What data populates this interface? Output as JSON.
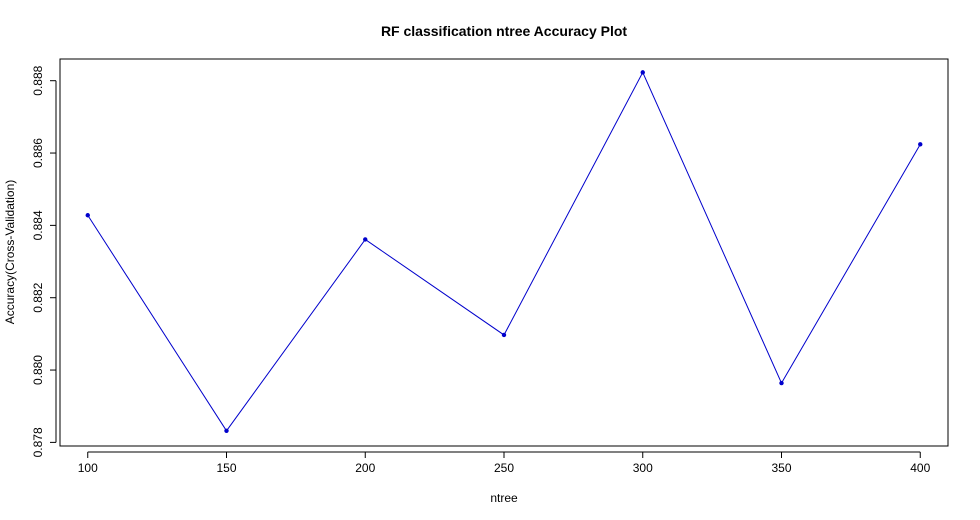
{
  "chart_data": {
    "type": "line",
    "title": "RF classification ntree Accuracy Plot",
    "xlabel": "ntree",
    "ylabel": "Accuracy(Cross-Validation)",
    "x": [
      100,
      150,
      200,
      250,
      300,
      350,
      400
    ],
    "series": [
      {
        "values": [
          0.88428,
          0.87832,
          0.88361,
          0.88097,
          0.88823,
          0.87964,
          0.88624
        ]
      }
    ],
    "xlim": [
      90,
      410
    ],
    "ylim": [
      0.8779,
      0.8886
    ],
    "xticks": [
      "100",
      "150",
      "200",
      "250",
      "300",
      "350",
      "400"
    ],
    "xtick_values": [
      100,
      150,
      200,
      250,
      300,
      350,
      400
    ],
    "yticks": [
      "0.878",
      "0.880",
      "0.882",
      "0.884",
      "0.886",
      "0.888"
    ],
    "ytick_values": [
      0.878,
      0.88,
      0.882,
      0.884,
      0.886,
      0.888
    ],
    "line_color": "#0000CC",
    "point_color": "#0000CC",
    "grid": false,
    "legend": "none"
  }
}
